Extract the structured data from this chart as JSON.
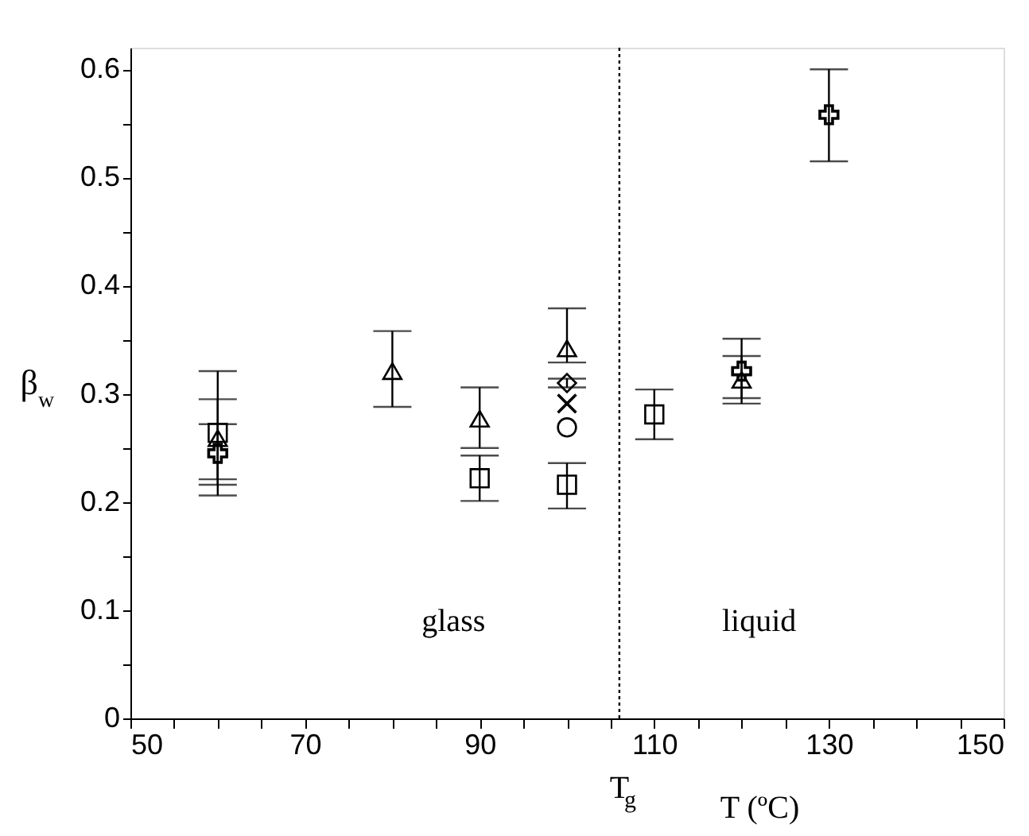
{
  "chart_data": {
    "type": "scatter",
    "xlabel": "T (ºC)",
    "ylabel": "β$_{w}$",
    "xlim": [
      50,
      150
    ],
    "xticks": [
      50,
      {
        "value": 55,
        "label": null
      },
      {
        "value": 60,
        "label": null
      },
      {
        "value": 65,
        "label": null
      },
      70,
      {
        "value": 75,
        "label": null
      },
      {
        "value": 80,
        "label": null
      },
      {
        "value": 85,
        "label": null
      },
      90,
      {
        "value": 95,
        "label": null
      },
      {
        "value": 100,
        "label": null
      },
      {
        "value": 105,
        "label": null
      },
      110,
      {
        "value": 115,
        "label": null
      },
      {
        "value": 120,
        "label": null
      },
      {
        "value": 125,
        "label": null
      },
      130,
      {
        "value": 135,
        "label": null
      },
      {
        "value": 140,
        "label": null
      },
      {
        "value": 145,
        "label": null
      },
      150
    ],
    "ylim": [
      0,
      0.62
    ],
    "yticks": [
      0,
      {
        "value": 0.05,
        "label": null
      },
      0.1,
      {
        "value": 0.15,
        "label": null
      },
      0.2,
      {
        "value": 0.25,
        "label": null
      },
      0.3,
      {
        "value": 0.35,
        "label": null
      },
      0.4,
      {
        "value": 0.45,
        "label": null
      },
      0.5,
      {
        "value": 0.55,
        "label": null
      },
      0.6
    ],
    "grid": false,
    "series": [
      {
        "color": "#000000",
        "marker": "square",
        "x": [
          60,
          90,
          100,
          110
        ],
        "values": [
          0.264,
          0.222,
          0.216,
          0.281
        ],
        "errors": [
          [
            0.221,
            0.295
          ],
          [
            0.201,
            0.243
          ],
          [
            0.194,
            0.236
          ],
          [
            0.258,
            0.304
          ]
        ]
      },
      {
        "color": "#000000",
        "marker": "triangle",
        "x": [
          60,
          80,
          90,
          100,
          120
        ],
        "values": [
          0.259,
          0.321,
          0.277,
          0.342,
          0.313
        ],
        "errors": [
          [
            0.216,
            0.321
          ],
          [
            0.288,
            0.358
          ],
          [
            0.25,
            0.306
          ],
          [
            0.329,
            0.379
          ],
          [
            0.291,
            0.335
          ]
        ]
      },
      {
        "color": "#000000",
        "marker": "cross",
        "x": [
          60,
          120,
          130
        ],
        "values": [
          0.245,
          0.321,
          0.558
        ],
        "errors": [
          [
            0.206,
            0.272
          ],
          [
            0.296,
            0.351
          ],
          [
            0.515,
            0.6
          ]
        ]
      },
      {
        "color": "#000000",
        "marker": "diamond",
        "x": [
          100
        ],
        "values": [
          0.31
        ],
        "errors": [
          [
            0.306,
            0.314
          ]
        ]
      },
      {
        "color": "#000000",
        "marker": "x",
        "x": [
          100
        ],
        "values": [
          0.291
        ],
        "errors": [
          null
        ]
      },
      {
        "color": "#000000",
        "marker": "circle",
        "x": [
          100
        ],
        "values": [
          0.269
        ],
        "errors": [
          null
        ]
      }
    ],
    "ref_lines": [
      {
        "axis": "x",
        "value": 106,
        "label": "T$_{g}$",
        "line_style": "dotted",
        "color": "#000000"
      }
    ],
    "annotations": [
      "glass",
      "liquid"
    ]
  }
}
